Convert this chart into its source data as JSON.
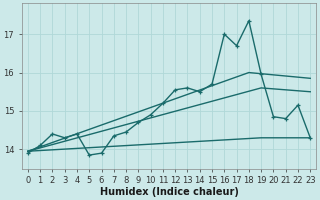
{
  "title": "",
  "xlabel": "Humidex (Indice chaleur)",
  "ylabel": "",
  "bg_color": "#cce9e9",
  "grid_color": "#b0d8d8",
  "line_color": "#1a6b6b",
  "xlim": [
    -0.5,
    23.5
  ],
  "ylim": [
    13.5,
    17.8
  ],
  "yticks": [
    14,
    15,
    16,
    17
  ],
  "xticks": [
    0,
    1,
    2,
    3,
    4,
    5,
    6,
    7,
    8,
    9,
    10,
    11,
    12,
    13,
    14,
    15,
    16,
    17,
    18,
    19,
    20,
    21,
    22,
    23
  ],
  "series1_x": [
    0,
    1,
    2,
    3,
    4,
    5,
    6,
    7,
    8,
    9,
    10,
    11,
    12,
    13,
    14,
    15,
    16,
    17,
    18,
    19,
    20,
    21,
    22,
    23
  ],
  "series1_y": [
    13.9,
    14.1,
    14.4,
    14.3,
    14.4,
    13.85,
    13.9,
    14.35,
    14.45,
    14.7,
    14.9,
    15.2,
    15.55,
    15.6,
    15.5,
    15.7,
    17.0,
    16.7,
    17.35,
    15.95,
    14.85,
    14.8,
    15.15,
    14.3
  ],
  "series2_x": [
    0,
    18,
    23
  ],
  "series2_y": [
    13.95,
    16.0,
    15.85
  ],
  "series3_x": [
    0,
    19,
    23
  ],
  "series3_y": [
    13.95,
    15.6,
    15.5
  ],
  "series4_x": [
    0,
    19,
    23
  ],
  "series4_y": [
    13.95,
    14.3,
    14.3
  ],
  "marker_size": 3.5,
  "line_width": 1.0,
  "font_size": 6,
  "xlabel_fontsize": 7
}
